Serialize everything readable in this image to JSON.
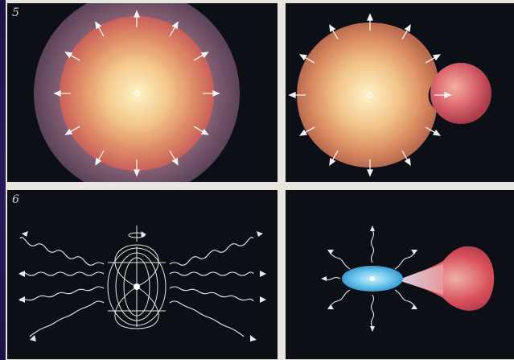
{
  "panels": [
    {
      "number": "5",
      "subject": "expanding-shell"
    },
    {
      "number": "",
      "subject": "shell-hitting-companion"
    },
    {
      "number": "6",
      "subject": "pulsar-dipole"
    },
    {
      "number": "",
      "subject": "accretion-disk-binary"
    }
  ],
  "colors": {
    "background": "#0d0f16",
    "border": "#e9e6e0",
    "arrow": "#f2f2f2",
    "disk": "#6ec6ee",
    "companion": "#d8505a"
  }
}
